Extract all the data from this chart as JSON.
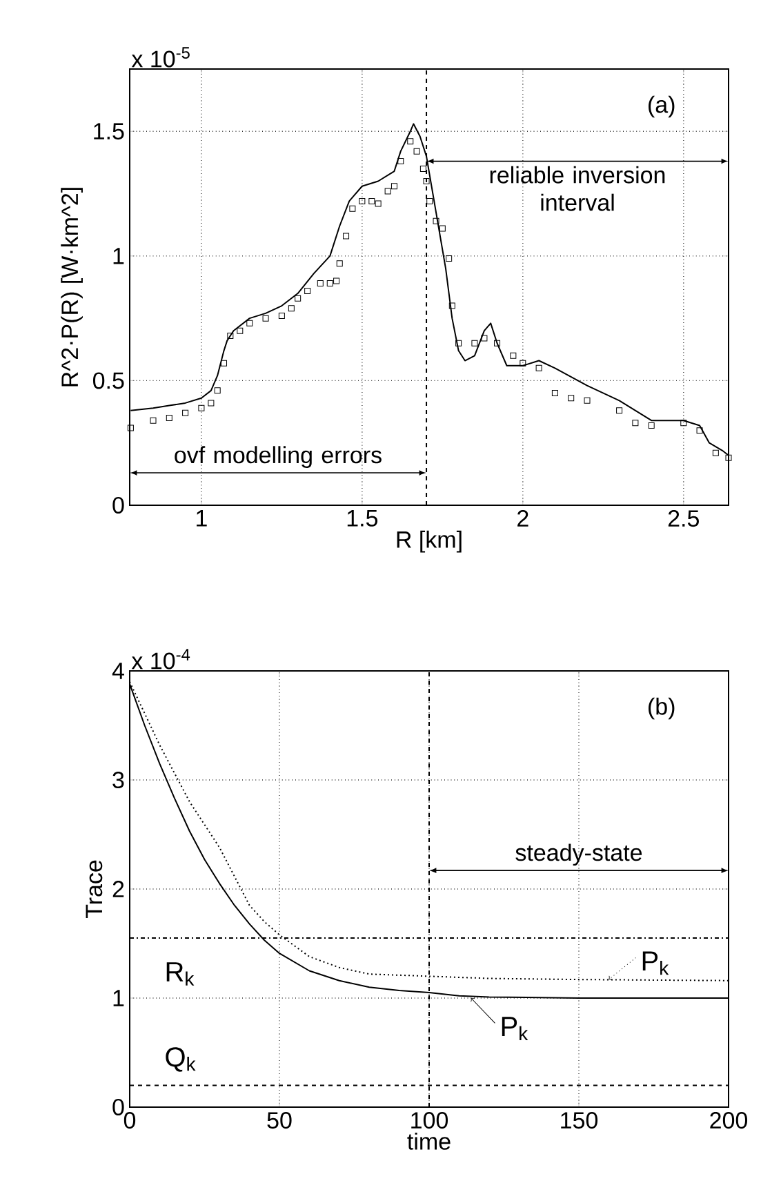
{
  "chart_data": [
    {
      "type": "line",
      "xlabel": "R [km]",
      "ylabel": "R^2·P(R) [W·km^2]",
      "xlim": [
        0.777,
        2.64
      ],
      "ylim": [
        0,
        1.75
      ],
      "xticks": [
        1,
        1.5,
        2,
        2.5
      ],
      "yticks": [
        0,
        0.5,
        1,
        1.5
      ],
      "grid": true,
      "annotations": [
        "x 10$^{-5}$",
        "(a)",
        "reliable inversion interval",
        "ovf modelling errors"
      ],
      "ref_lines": [
        {
          "axis": "x",
          "value": 1.7,
          "color": "#000000",
          "line_style": "dashed"
        }
      ],
      "series": [
        {
          "type": "line",
          "color": "#000000",
          "marker": "none",
          "line_style": "solid",
          "x": [
            0.78,
            0.85,
            0.9,
            0.95,
            1.0,
            1.03,
            1.05,
            1.07,
            1.08,
            1.1,
            1.15,
            1.2,
            1.25,
            1.3,
            1.35,
            1.4,
            1.43,
            1.46,
            1.5,
            1.55,
            1.6,
            1.62,
            1.65,
            1.66,
            1.68,
            1.7,
            1.72,
            1.74,
            1.76,
            1.78,
            1.8,
            1.82,
            1.85,
            1.88,
            1.9,
            1.92,
            1.95,
            2.0,
            2.05,
            2.1,
            2.2,
            2.3,
            2.4,
            2.5,
            2.55,
            2.58,
            2.62,
            2.64
          ],
          "values": [
            0.38,
            0.39,
            0.4,
            0.41,
            0.43,
            0.46,
            0.52,
            0.62,
            0.66,
            0.7,
            0.75,
            0.77,
            0.8,
            0.85,
            0.93,
            1.0,
            1.12,
            1.22,
            1.28,
            1.3,
            1.34,
            1.42,
            1.5,
            1.53,
            1.48,
            1.4,
            1.25,
            1.1,
            0.95,
            0.75,
            0.62,
            0.58,
            0.6,
            0.7,
            0.73,
            0.65,
            0.56,
            0.56,
            0.58,
            0.55,
            0.48,
            0.42,
            0.34,
            0.34,
            0.32,
            0.25,
            0.22,
            0.2
          ]
        },
        {
          "type": "scatter",
          "color": "#000000",
          "marker": "square",
          "x": [
            0.78,
            0.85,
            0.9,
            0.95,
            1.0,
            1.03,
            1.05,
            1.07,
            1.09,
            1.12,
            1.15,
            1.2,
            1.25,
            1.28,
            1.3,
            1.33,
            1.37,
            1.4,
            1.42,
            1.43,
            1.45,
            1.47,
            1.5,
            1.53,
            1.55,
            1.58,
            1.6,
            1.62,
            1.65,
            1.67,
            1.69,
            1.7,
            1.71,
            1.73,
            1.75,
            1.77,
            1.78,
            1.8,
            1.85,
            1.88,
            1.92,
            1.97,
            2.0,
            2.05,
            2.1,
            2.15,
            2.2,
            2.3,
            2.35,
            2.4,
            2.5,
            2.55,
            2.6,
            2.64
          ],
          "values": [
            0.31,
            0.34,
            0.35,
            0.37,
            0.39,
            0.41,
            0.46,
            0.57,
            0.68,
            0.7,
            0.73,
            0.75,
            0.76,
            0.79,
            0.83,
            0.86,
            0.89,
            0.89,
            0.9,
            0.97,
            1.08,
            1.19,
            1.22,
            1.22,
            1.21,
            1.26,
            1.28,
            1.38,
            1.46,
            1.42,
            1.35,
            1.3,
            1.22,
            1.14,
            1.11,
            0.99,
            0.8,
            0.65,
            0.65,
            0.67,
            0.65,
            0.6,
            0.57,
            0.55,
            0.45,
            0.43,
            0.42,
            0.38,
            0.33,
            0.32,
            0.33,
            0.3,
            0.21,
            0.19
          ]
        }
      ]
    },
    {
      "type": "line",
      "xlabel": "time",
      "ylabel": "Trace",
      "xlim": [
        0,
        200
      ],
      "ylim": [
        0,
        4
      ],
      "xticks": [
        0,
        50,
        100,
        150,
        200
      ],
      "yticks": [
        0,
        1,
        2,
        3,
        4
      ],
      "grid": true,
      "annotations": [
        "x 10$^{-4}$",
        "(b)",
        "steady-state"
      ],
      "ref_lines": [
        {
          "axis": "x",
          "value": 100,
          "color": "#000000",
          "line_style": "dashed"
        },
        {
          "axis": "y",
          "value": 1.55,
          "label": "R$_{k}$",
          "color": "#000000",
          "line_style": "dashdot"
        },
        {
          "axis": "y",
          "value": 0.2,
          "label": "Q$_{k}$",
          "color": "#000000",
          "line_style": "dashed"
        }
      ],
      "series": [
        {
          "name": "P$_{k}$",
          "type": "line",
          "color": "#000000",
          "marker": "none",
          "line_style": "solid",
          "x": [
            0,
            5,
            10,
            15,
            20,
            25,
            30,
            35,
            40,
            45,
            50,
            60,
            70,
            80,
            90,
            100,
            110,
            120,
            150,
            175,
            200
          ],
          "values": [
            3.88,
            3.5,
            3.15,
            2.83,
            2.53,
            2.27,
            2.05,
            1.85,
            1.68,
            1.53,
            1.41,
            1.25,
            1.16,
            1.1,
            1.07,
            1.05,
            1.02,
            1.01,
            1.0,
            1.0,
            1.0
          ]
        },
        {
          "name": "P$_{k}$",
          "type": "line",
          "color": "#000000",
          "marker": "none",
          "line_style": "dotted",
          "x": [
            0,
            10,
            20,
            30,
            40,
            45,
            50,
            60,
            70,
            80,
            90,
            100,
            120,
            150,
            200
          ],
          "values": [
            3.9,
            3.32,
            2.8,
            2.38,
            1.85,
            1.7,
            1.58,
            1.38,
            1.28,
            1.22,
            1.21,
            1.2,
            1.18,
            1.17,
            1.16
          ]
        }
      ]
    }
  ]
}
